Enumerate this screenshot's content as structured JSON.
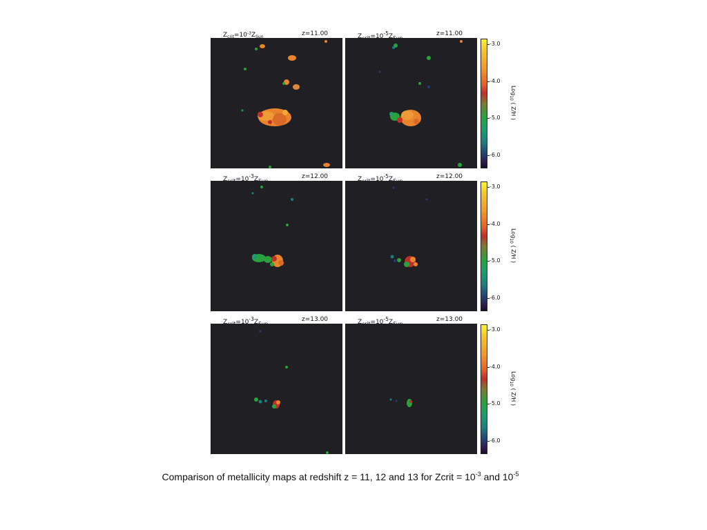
{
  "rows": [
    {
      "redshift_label": "z=11.00",
      "panels": [
        {
          "zcrit_prefix": "Z",
          "zcrit_sub": "crit",
          "zcrit_eq": "=10",
          "zcrit_exp": "-3",
          "zcrit_z": "Z",
          "zcrit_sun": "Sun"
        },
        {
          "zcrit_prefix": "Z",
          "zcrit_sub": "crit",
          "zcrit_eq": "=10",
          "zcrit_exp": "-5",
          "zcrit_z": "Z",
          "zcrit_sun": "Sun"
        }
      ]
    },
    {
      "redshift_label": "z=12.00",
      "panels": [
        {
          "zcrit_prefix": "Z",
          "zcrit_sub": "crit",
          "zcrit_eq": "=10",
          "zcrit_exp": "-3",
          "zcrit_z": "Z",
          "zcrit_sun": "Sun"
        },
        {
          "zcrit_prefix": "Z",
          "zcrit_sub": "crit",
          "zcrit_eq": "=10",
          "zcrit_exp": "-5",
          "zcrit_z": "Z",
          "zcrit_sun": "Sun"
        }
      ]
    },
    {
      "redshift_label": "z=13.00",
      "panels": [
        {
          "zcrit_prefix": "Z",
          "zcrit_sub": "crit",
          "zcrit_eq": "=10",
          "zcrit_exp": "-3",
          "zcrit_z": "Z",
          "zcrit_sun": "Sun"
        },
        {
          "zcrit_prefix": "Z",
          "zcrit_sub": "crit",
          "zcrit_eq": "=10",
          "zcrit_exp": "-5",
          "zcrit_z": "Z",
          "zcrit_sun": "Sun"
        }
      ]
    }
  ],
  "colorbar": {
    "label_pre": "Log",
    "label_sub": "10",
    "label_post": "( Z/H )",
    "ticks": [
      "-3.0",
      "-4.0",
      "-5.0",
      "-6.0"
    ]
  },
  "colors": {
    "map_background": "#201f24",
    "high_metal": "#e8842c",
    "mid_metal": "#c0302a",
    "low_metal": "#2aa23b",
    "teal": "#1b7f80",
    "navy": "#253a79"
  },
  "caption": {
    "text": "Comparison of metallicity maps at redshift z = 11, 12 and 13 for Zcrit = 10",
    "exp1": "-3",
    "mid": " and 10",
    "exp2": "-5"
  }
}
